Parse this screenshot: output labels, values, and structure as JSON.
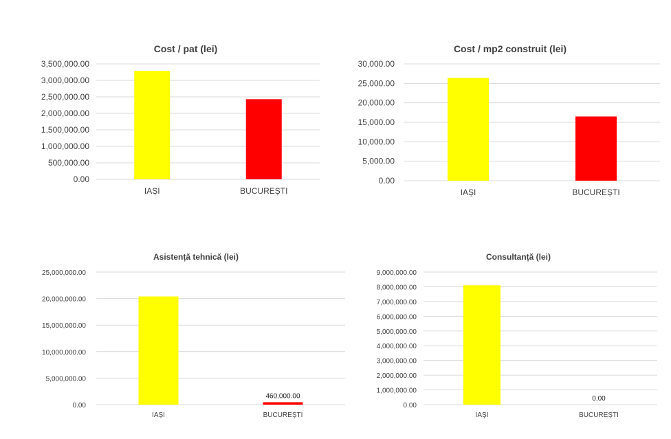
{
  "chart_data": [
    {
      "type": "bar",
      "title": "Cost / pat (lei)",
      "categories": [
        "IAȘI",
        "BUCUREȘTI"
      ],
      "values": [
        3290000,
        2430000
      ],
      "colors": [
        "#ffff00",
        "#ff0000"
      ],
      "ylim": [
        0,
        3500000
      ],
      "yticks": [
        "0.00",
        "500,000.00",
        "1,000,000.00",
        "1,500,000.00",
        "2,000,000.00",
        "2,500,000.00",
        "3,000,000.00",
        "3,500,000.00"
      ],
      "data_labels": [
        "",
        ""
      ],
      "grid": true
    },
    {
      "type": "bar",
      "title": "Cost / mp2 construit (lei)",
      "categories": [
        "IAȘI",
        "BUCUREȘTI"
      ],
      "values": [
        26400,
        16500
      ],
      "colors": [
        "#ffff00",
        "#ff0000"
      ],
      "ylim": [
        0,
        30000
      ],
      "yticks": [
        "0.00",
        "5,000.00",
        "10,000.00",
        "15,000.00",
        "20,000.00",
        "25,000.00",
        "30,000.00"
      ],
      "data_labels": [
        "",
        ""
      ],
      "grid": true
    },
    {
      "type": "bar",
      "title": "Asistență tehnică (lei)",
      "categories": [
        "IAȘI",
        "BUCUREȘTI"
      ],
      "values": [
        20400000,
        460000
      ],
      "colors": [
        "#ffff00",
        "#ff0000"
      ],
      "ylim": [
        0,
        25000000
      ],
      "yticks": [
        "0.00",
        "5,000,000.00",
        "10,000,000.00",
        "15,000,000.00",
        "20,000,000.00",
        "25,000,000.00"
      ],
      "data_labels": [
        "",
        "460,000.00"
      ],
      "grid": true
    },
    {
      "type": "bar",
      "title": "Consultanță (lei)",
      "categories": [
        "IAȘI",
        "BUCUREȘTI"
      ],
      "values": [
        8100000,
        0
      ],
      "colors": [
        "#ffff00",
        "#ff0000"
      ],
      "ylim": [
        0,
        9000000
      ],
      "yticks": [
        "0.00",
        "1,000,000.00",
        "2,000,000.00",
        "3,000,000.00",
        "4,000,000.00",
        "5,000,000.00",
        "6,000,000.00",
        "7,000,000.00",
        "8,000,000.00",
        "9,000,000.00"
      ],
      "data_labels": [
        "",
        "0.00"
      ],
      "grid": true
    }
  ]
}
